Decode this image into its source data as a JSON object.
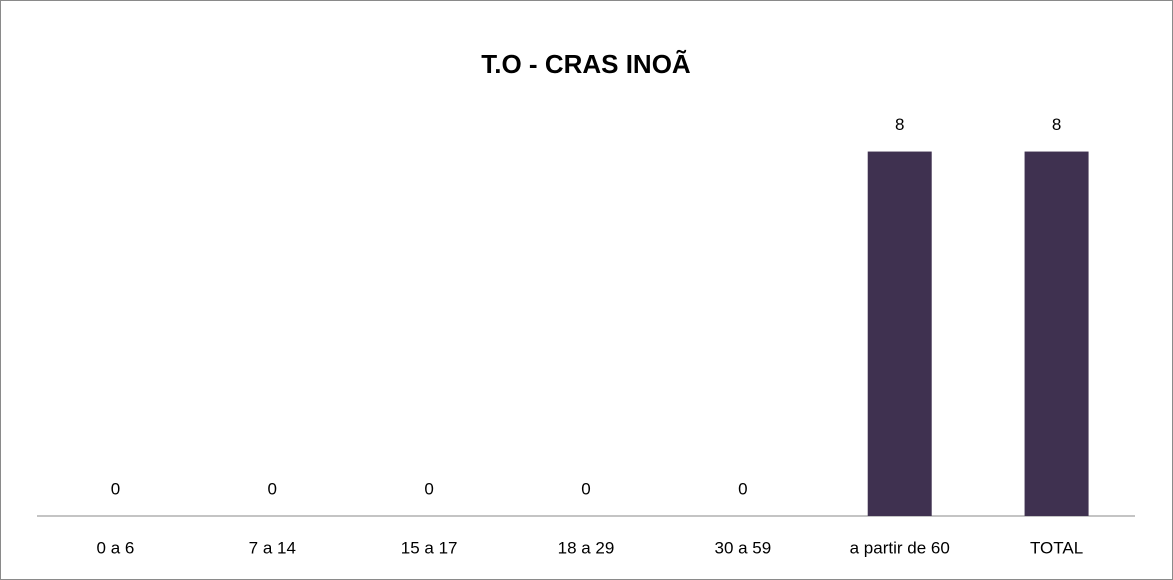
{
  "chart_data": {
    "type": "bar",
    "title": "T.O - CRAS INOÃ",
    "categories": [
      "0 a 6",
      "7 a 14",
      "15 a 17",
      "18 a 29",
      "30 a 59",
      "a partir de 60",
      "TOTAL"
    ],
    "values": [
      0,
      0,
      0,
      0,
      0,
      8,
      8
    ],
    "color": "#3f3150",
    "ylim": [
      0,
      9
    ]
  }
}
